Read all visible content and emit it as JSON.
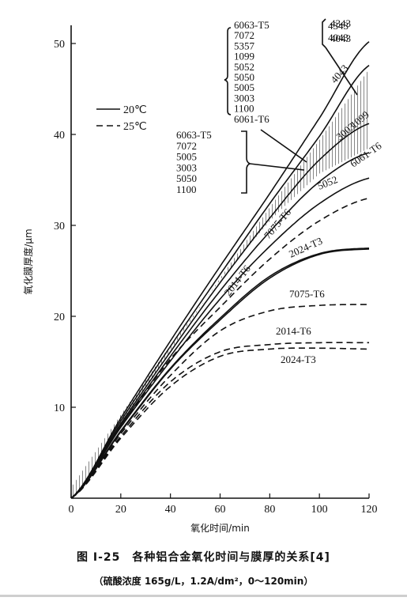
{
  "chart_data": {
    "type": "line",
    "xlabel": "氧化时间/min",
    "ylabel": "氧化膜厚度/μm",
    "xlim": [
      0,
      120
    ],
    "ylim": [
      0,
      52
    ],
    "x_ticks": [
      "0",
      "20",
      "40",
      "60",
      "80",
      "100",
      "120"
    ],
    "y_ticks": [
      "10",
      "20",
      "30",
      "40",
      "50"
    ],
    "legend": {
      "placement": "upper-left",
      "items": [
        {
          "label": "20℃",
          "style": "solid"
        },
        {
          "label": "25℃",
          "style": "dashed"
        }
      ]
    },
    "group_labels": {
      "solid_group": [
        "6063-T5",
        "7072",
        "5357",
        "1099",
        "5052",
        "5050",
        "5005",
        "3003",
        "1100",
        "6061-T6"
      ],
      "dashed_group": [
        "6063-T5",
        "7072",
        "5005",
        "3003",
        "5050",
        "1100"
      ],
      "top_pair": [
        "4343",
        "4043"
      ]
    },
    "series": [
      {
        "name": "4343",
        "style": "solid",
        "x": [
          0,
          20,
          40,
          60,
          80,
          100,
          120
        ],
        "y": [
          0,
          8.8,
          17.3,
          25.5,
          33.5,
          41.8,
          50.2
        ]
      },
      {
        "name": "4043",
        "style": "solid",
        "x": [
          0,
          20,
          40,
          60,
          80,
          100,
          120
        ],
        "y": [
          0,
          8.5,
          16.7,
          24.6,
          32.4,
          39.8,
          47.6
        ]
      },
      {
        "name": "1099",
        "style": "solid",
        "x": [
          0,
          20,
          40,
          60,
          80,
          100,
          120
        ],
        "y": [
          0,
          8.2,
          16.1,
          23.7,
          30.8,
          37.2,
          41.2
        ]
      },
      {
        "name": "6061-T6",
        "style": "solid",
        "x": [
          0,
          20,
          40,
          60,
          80,
          100,
          120
        ],
        "y": [
          0,
          8.0,
          15.6,
          22.8,
          29.3,
          34.8,
          38.0
        ]
      },
      {
        "name": "5052",
        "style": "solid",
        "x": [
          0,
          20,
          40,
          60,
          80,
          100,
          120
        ],
        "y": [
          0,
          7.8,
          15.1,
          21.9,
          27.7,
          32.4,
          35.2
        ]
      },
      {
        "name": "7075-T6",
        "style": "dashed",
        "x": [
          0,
          20,
          40,
          60,
          80,
          100,
          120
        ],
        "y": [
          0,
          7.9,
          15.3,
          21.0,
          26.3,
          30.5,
          33.0
        ]
      },
      {
        "name": "2014-T6",
        "style": "solid",
        "x": [
          0,
          20,
          40,
          60,
          80,
          100,
          120
        ],
        "y": [
          0,
          7.4,
          14.3,
          19.8,
          24.4,
          26.9,
          27.5
        ]
      },
      {
        "name": "2024-T3",
        "style": "solid",
        "x": [
          0,
          20,
          40,
          60,
          80,
          100,
          120
        ],
        "y": [
          0,
          7.3,
          14.2,
          19.6,
          24.2,
          26.8,
          27.4
        ]
      },
      {
        "name": "7075-T6",
        "style": "dashed",
        "x": [
          0,
          20,
          40,
          60,
          80,
          100,
          120
        ],
        "y": [
          0,
          7.1,
          13.5,
          18.4,
          20.6,
          21.2,
          21.3
        ]
      },
      {
        "name": "2014-T6",
        "style": "dashed",
        "x": [
          0,
          20,
          40,
          60,
          80,
          100,
          120
        ],
        "y": [
          0,
          6.8,
          12.8,
          16.1,
          16.9,
          17.1,
          17.1
        ]
      },
      {
        "name": "2024-T3",
        "style": "dashed",
        "x": [
          0,
          20,
          40,
          60,
          80,
          100,
          120
        ],
        "y": [
          0,
          6.6,
          12.3,
          15.6,
          16.4,
          16.5,
          16.4
        ]
      }
    ]
  },
  "caption": {
    "title": "图 Ⅰ-25　各种铝合金氧化时间与膜厚的关系[4]",
    "subtitle": "（硫酸浓度 165g/L，1.2A/dm²，0～120min）"
  }
}
